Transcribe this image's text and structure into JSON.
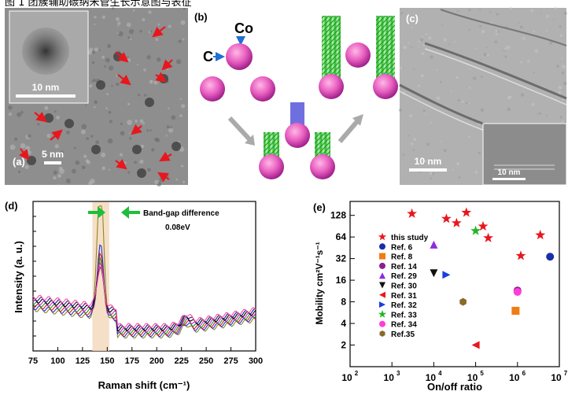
{
  "top_strip_text": "图 1 团簇辅助碳纳米管生长示意图与表征",
  "panels": {
    "a": {
      "label": "(a)",
      "scale_inset": "10 nm",
      "scale_main": "5 nm"
    },
    "b": {
      "label": "(b)",
      "co": "Co",
      "c": "C"
    },
    "c": {
      "label": "(c)",
      "scale_main": "10 nm",
      "scale_inset": "10 nm"
    },
    "d": {
      "label": "(d)",
      "annotation_line1": "Band-gap difference",
      "annotation_line2": "0.08eV"
    },
    "e": {
      "label": "(e)"
    }
  },
  "chart_data": [
    {
      "type": "line",
      "xlabel": "Raman shift (cm⁻¹)",
      "ylabel": "Intensity (a. u.)",
      "xlim": [
        75,
        300
      ],
      "x_ticks": [
        "75",
        "100",
        "125",
        "150",
        "175",
        "200",
        "225",
        "250",
        "275",
        "300"
      ],
      "highlight_band": [
        135,
        152
      ],
      "peak_x": 143,
      "series": [
        {
          "color": "#8a8a2a",
          "peak": 0.92
        },
        {
          "color": "#2d2dd6",
          "peak": 0.48
        },
        {
          "color": "#d41c1c",
          "peak": 0.4
        },
        {
          "color": "#1d9a1d",
          "peak": 0.36
        },
        {
          "color": "#cc22cc",
          "peak": 0.33
        },
        {
          "color": "#000000",
          "peak": 0.3
        },
        {
          "color": "#1a1a8c",
          "peak": 0.28
        },
        {
          "color": "#ff4fa0",
          "peak": 0.26
        }
      ]
    },
    {
      "type": "scatter",
      "xlabel": "On/off ratio",
      "ylabel": "Mobility cm²V⁻¹s⁻¹",
      "x_scale": "log",
      "y_scale": "log",
      "xlim": [
        100,
        10000000
      ],
      "ylim": [
        1,
        200
      ],
      "x_tick_exponents": [
        "2",
        "3",
        "4",
        "5",
        "6",
        "7"
      ],
      "y_ticks": [
        "2",
        "4",
        "8",
        "16",
        "32",
        "64",
        "128"
      ],
      "legend_position": "left",
      "series": [
        {
          "name": "this study",
          "marker": "star",
          "color": "#e8171e",
          "points": [
            [
              3000,
              135
            ],
            [
              20000,
              115
            ],
            [
              35000,
              100
            ],
            [
              60000,
              140
            ],
            [
              150000,
              90
            ],
            [
              200000,
              62
            ],
            [
              1200000,
              35
            ],
            [
              3500000,
              68
            ]
          ]
        },
        {
          "name": "Ref. 6",
          "marker": "circle",
          "color": "#1a2ea8",
          "points": [
            [
              6000000,
              34
            ]
          ]
        },
        {
          "name": "Ref. 8",
          "marker": "square",
          "color": "#f07c12",
          "points": [
            [
              900000,
              6
            ]
          ]
        },
        {
          "name": "Ref. 14",
          "marker": "circle",
          "color": "#8d1f8d",
          "points": [
            [
              1000000,
              11.5
            ]
          ]
        },
        {
          "name": "Ref. 29",
          "marker": "triangle-up",
          "color": "#8b2be2",
          "points": [
            [
              10000,
              50
            ]
          ]
        },
        {
          "name": "Ref. 30",
          "marker": "triangle-down",
          "color": "#111111",
          "points": [
            [
              10000,
              20
            ]
          ]
        },
        {
          "name": "Ref. 31",
          "marker": "triangle-left",
          "color": "#e8171e",
          "points": [
            [
              100000,
              2
            ]
          ]
        },
        {
          "name": "Ref. 32",
          "marker": "triangle-right",
          "color": "#1a3fe0",
          "points": [
            [
              20000,
              19
            ]
          ]
        },
        {
          "name": "Ref. 33",
          "marker": "star",
          "color": "#26b526",
          "points": [
            [
              100000,
              78
            ]
          ]
        },
        {
          "name": "Ref. 34",
          "marker": "circle",
          "color": "#ff3cdc",
          "points": [
            [
              1000000,
              11
            ]
          ]
        },
        {
          "name": "Ref.35",
          "marker": "hexagon",
          "color": "#8a6a2a",
          "points": [
            [
              50000,
              8
            ]
          ]
        }
      ]
    }
  ]
}
